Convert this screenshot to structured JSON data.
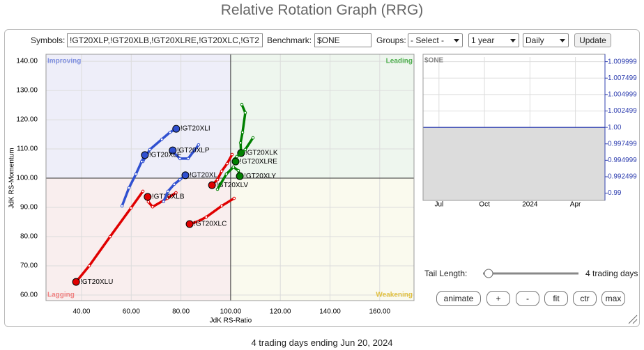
{
  "header": {
    "title": "Relative Rotation Graph (RRG)"
  },
  "form": {
    "symbols_label": "Symbols:",
    "symbols_value": "!GT20XLP,!GT20XLB,!GT20XLRE,!GT20XLC,!GT2",
    "benchmark_label": "Benchmark:",
    "benchmark_value": "$ONE",
    "groups_label": "Groups:",
    "groups_value": "- Select -",
    "period": "1 year",
    "frequency": "Daily",
    "update": "Update"
  },
  "chart_data": [
    {
      "type": "rrg",
      "x_label": "JdK RS-Ratio",
      "y_label": "JdK RS-Momentum",
      "quadrants": {
        "improving": "Improving",
        "leading": "Leading",
        "lagging": "Lagging",
        "weakening": "Weakening"
      },
      "xlim": [
        25.7,
        173.8
      ],
      "ylim": [
        58.1,
        142.4
      ],
      "xticks": [
        {
          "value": 40,
          "label": "40.00"
        },
        {
          "value": 60,
          "label": "60.00"
        },
        {
          "value": 80,
          "label": "80.00"
        },
        {
          "value": 100,
          "label": "100.00"
        },
        {
          "value": 120,
          "label": "120.00"
        },
        {
          "value": 140,
          "label": "140.00"
        },
        {
          "value": 160,
          "label": "160.00"
        }
      ],
      "yticks": [
        {
          "value": 60,
          "label": "60.00"
        },
        {
          "value": 70,
          "label": "70.00"
        },
        {
          "value": 80,
          "label": "80.00"
        },
        {
          "value": 90,
          "label": "90.00"
        },
        {
          "value": 100,
          "label": "100.00"
        },
        {
          "value": 110,
          "label": "110.00"
        },
        {
          "value": 120,
          "label": "120.00"
        },
        {
          "value": 130,
          "label": "130.00"
        },
        {
          "value": 140,
          "label": "140.00"
        }
      ],
      "series": [
        {
          "name": "!GT20XLU",
          "color": "#e00000",
          "x": [
            64.7,
            59.9,
            51.5,
            43.1,
            37.8
          ],
          "y": [
            95.5,
            89.8,
            80.0,
            70.0,
            64.5
          ]
        },
        {
          "name": "!GT20XLB",
          "color": "#e00000",
          "x": [
            78.0,
            74.5,
            68.6,
            66.9,
            66.6
          ],
          "y": [
            95.0,
            93.1,
            90.2,
            91.9,
            93.6
          ]
        },
        {
          "name": "!GT20XLC",
          "color": "#e00000",
          "x": [
            101.4,
            96.4,
            90.2,
            86.8,
            83.5
          ],
          "y": [
            93.1,
            90.5,
            86.7,
            85.2,
            84.3
          ]
        },
        {
          "name": "!GT20XLV",
          "color": "#e00000",
          "x": [
            100.6,
            98.6,
            96.4,
            94.7,
            92.5
          ],
          "y": [
            108.1,
            105.0,
            102.4,
            99.5,
            97.6
          ]
        },
        {
          "name": "!GT20XLI",
          "color": "#3050d0",
          "x": [
            64.7,
            67.5,
            72.3,
            75.6,
            78.1
          ],
          "y": [
            105.7,
            109.8,
            113.3,
            115.7,
            116.9
          ]
        },
        {
          "name": "!GT20XLP",
          "color": "#3050d0",
          "x": [
            87.1,
            82.9,
            79.6,
            77.3,
            76.7
          ],
          "y": [
            111.4,
            106.7,
            106.7,
            108.6,
            109.5
          ]
        },
        {
          "name": "!GT20XLF",
          "color": "#3050d0",
          "x": [
            56.3,
            59.1,
            61.9,
            64.2,
            65.5
          ],
          "y": [
            90.5,
            96.7,
            101.4,
            105.7,
            107.9
          ]
        },
        {
          "name": "!GT20XL",
          "color": "#3050d0",
          "x": [
            73.0,
            74.8,
            77.3,
            79.6,
            81.8
          ],
          "y": [
            92.0,
            95.5,
            97.9,
            99.5,
            101.0
          ]
        },
        {
          "name": "!GT20XLK",
          "color": "#008000",
          "x": [
            104.5,
            105.9,
            104.8,
            104.0,
            104.2
          ],
          "y": [
            125.2,
            122.4,
            115.7,
            112.1,
            108.6
          ]
        },
        {
          "name": "!GT20XLRE",
          "color": "#008000",
          "x": [
            109.0,
            105.9,
            102.5,
            101.5,
            102.0
          ],
          "y": [
            113.8,
            109.8,
            107.4,
            106.5,
            105.7
          ]
        },
        {
          "name": "!GT20XLY",
          "color": "#008000",
          "x": [
            94.7,
            98.3,
            101.1,
            103.1,
            103.7
          ],
          "y": [
            96.2,
            101.4,
            103.8,
            102.6,
            100.7
          ]
        }
      ]
    },
    {
      "type": "line",
      "title": "$ONE",
      "color": "#3040b0",
      "categories": [
        "Jul",
        "Oct",
        "2024",
        "Apr"
      ],
      "values": [
        1,
        1,
        1,
        1
      ],
      "ylim": [
        0.9889,
        1.0107
      ],
      "yticks": [
        1.009999,
        1.007499,
        1.004999,
        1.002499,
        {
          "value": 1,
          "label": "1.00"
        },
        0.997499,
        0.994999,
        0.992499,
        0.99
      ],
      "grid": true
    }
  ],
  "controls": {
    "tail_length_label": "Tail Length:",
    "tail_value": "4 trading days",
    "buttons": [
      "animate",
      "+",
      "-",
      "fit",
      "ctr",
      "max"
    ]
  },
  "footer": "4 trading days ending Jun 20, 2024"
}
